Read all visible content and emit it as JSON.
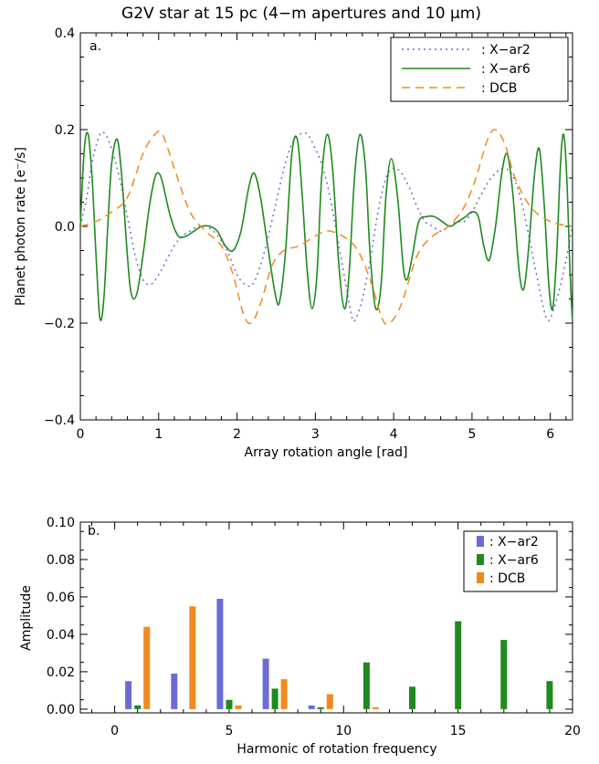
{
  "figure_title": "G2V star at 15 pc (4−m apertures and 10 μm)",
  "chart_data": [
    {
      "type": "line",
      "panel_label": "a.",
      "xlabel": "Array rotation angle [rad]",
      "ylabel": "Planet photon rate [e⁻/s]",
      "xlim": [
        0,
        6.2832
      ],
      "ylim": [
        -0.4,
        0.4
      ],
      "xticks": [
        "0",
        "1",
        "2",
        "3",
        "4",
        "5",
        "6"
      ],
      "yticks": [
        "−0.4",
        "−0.2",
        "0.0",
        "0.2",
        "0.4"
      ],
      "legend_position": "top-right",
      "series": [
        {
          "name": ": X−ar2",
          "color": "#6b6bd6",
          "style": "dotted",
          "points": [
            [
              0,
              0
            ],
            [
              0.08,
              0.06
            ],
            [
              0.16,
              0.14
            ],
            [
              0.25,
              0.19
            ],
            [
              0.32,
              0.19
            ],
            [
              0.4,
              0.16
            ],
            [
              0.5,
              0.1
            ],
            [
              0.6,
              0.02
            ],
            [
              0.7,
              -0.06
            ],
            [
              0.8,
              -0.11
            ],
            [
              0.9,
              -0.12
            ],
            [
              1.0,
              -0.1
            ],
            [
              1.1,
              -0.07
            ],
            [
              1.2,
              -0.04
            ],
            [
              1.3,
              -0.02
            ],
            [
              1.4,
              -0.01
            ],
            [
              1.5,
              0
            ],
            [
              1.6,
              0
            ],
            [
              1.7,
              -0.01
            ],
            [
              1.8,
              -0.03
            ],
            [
              1.9,
              -0.06
            ],
            [
              2.0,
              -0.1
            ],
            [
              2.1,
              -0.12
            ],
            [
              2.2,
              -0.12
            ],
            [
              2.3,
              -0.08
            ],
            [
              2.4,
              -0.02
            ],
            [
              2.5,
              0.05
            ],
            [
              2.6,
              0.12
            ],
            [
              2.7,
              0.17
            ],
            [
              2.8,
              0.19
            ],
            [
              2.9,
              0.19
            ],
            [
              3.0,
              0.16
            ],
            [
              3.1,
              0.12
            ],
            [
              3.2,
              0.05
            ],
            [
              3.3,
              -0.04
            ],
            [
              3.4,
              -0.13
            ],
            [
              3.47,
              -0.19
            ],
            [
              3.52,
              -0.19
            ],
            [
              3.6,
              -0.15
            ],
            [
              3.7,
              -0.07
            ],
            [
              3.8,
              0.03
            ],
            [
              3.9,
              0.1
            ],
            [
              4.0,
              0.12
            ],
            [
              4.1,
              0.11
            ],
            [
              4.2,
              0.08
            ],
            [
              4.3,
              0.04
            ],
            [
              4.4,
              0.01
            ],
            [
              4.5,
              0
            ],
            [
              4.6,
              -0.01
            ],
            [
              4.7,
              0
            ],
            [
              4.8,
              0.01
            ],
            [
              4.9,
              0.01
            ],
            [
              5.0,
              0.03
            ],
            [
              5.1,
              0.06
            ],
            [
              5.2,
              0.09
            ],
            [
              5.3,
              0.11
            ],
            [
              5.4,
              0.12
            ],
            [
              5.5,
              0.11
            ],
            [
              5.6,
              0.07
            ],
            [
              5.7,
              0.0
            ],
            [
              5.8,
              -0.08
            ],
            [
              5.9,
              -0.16
            ],
            [
              5.95,
              -0.19
            ],
            [
              6.0,
              -0.19
            ],
            [
              6.1,
              -0.14
            ],
            [
              6.2,
              -0.07
            ],
            [
              6.28,
              0.0
            ]
          ]
        },
        {
          "name": ": X−ar6",
          "color": "#1f8a1f",
          "style": "solid",
          "points": [
            [
              0,
              0
            ],
            [
              0.05,
              0.16
            ],
            [
              0.1,
              0.19
            ],
            [
              0.15,
              0.1
            ],
            [
              0.2,
              -0.06
            ],
            [
              0.25,
              -0.19
            ],
            [
              0.3,
              -0.15
            ],
            [
              0.35,
              0.0
            ],
            [
              0.4,
              0.13
            ],
            [
              0.47,
              0.18
            ],
            [
              0.53,
              0.1
            ],
            [
              0.6,
              -0.06
            ],
            [
              0.65,
              -0.14
            ],
            [
              0.72,
              -0.14
            ],
            [
              0.8,
              -0.06
            ],
            [
              0.88,
              0.04
            ],
            [
              0.95,
              0.1
            ],
            [
              1.0,
              0.11
            ],
            [
              1.05,
              0.09
            ],
            [
              1.15,
              0.02
            ],
            [
              1.25,
              -0.02
            ],
            [
              1.35,
              -0.02
            ],
            [
              1.45,
              -0.01
            ],
            [
              1.55,
              0.0
            ],
            [
              1.65,
              0.0
            ],
            [
              1.75,
              -0.01
            ],
            [
              1.85,
              -0.04
            ],
            [
              1.95,
              -0.05
            ],
            [
              2.05,
              -0.01
            ],
            [
              2.15,
              0.08
            ],
            [
              2.22,
              0.11
            ],
            [
              2.3,
              0.06
            ],
            [
              2.4,
              -0.05
            ],
            [
              2.5,
              -0.15
            ],
            [
              2.55,
              -0.15
            ],
            [
              2.62,
              -0.05
            ],
            [
              2.7,
              0.15
            ],
            [
              2.77,
              0.18
            ],
            [
              2.83,
              0.07
            ],
            [
              2.9,
              -0.1
            ],
            [
              2.96,
              -0.17
            ],
            [
              3.02,
              -0.1
            ],
            [
              3.08,
              0.1
            ],
            [
              3.15,
              0.19
            ],
            [
              3.22,
              0.12
            ],
            [
              3.3,
              -0.08
            ],
            [
              3.37,
              -0.17
            ],
            [
              3.43,
              -0.1
            ],
            [
              3.5,
              0.1
            ],
            [
              3.57,
              0.19
            ],
            [
              3.64,
              0.12
            ],
            [
              3.7,
              -0.06
            ],
            [
              3.77,
              -0.17
            ],
            [
              3.84,
              -0.12
            ],
            [
              3.9,
              0.06
            ],
            [
              3.97,
              0.14
            ],
            [
              4.05,
              0.06
            ],
            [
              4.12,
              -0.08
            ],
            [
              4.17,
              -0.11
            ],
            [
              4.24,
              -0.06
            ],
            [
              4.32,
              0.01
            ],
            [
              4.42,
              0.02
            ],
            [
              4.52,
              0.02
            ],
            [
              4.62,
              0.01
            ],
            [
              4.72,
              0.0
            ],
            [
              4.82,
              0.01
            ],
            [
              4.92,
              0.02
            ],
            [
              5.0,
              0.03
            ],
            [
              5.08,
              0.02
            ],
            [
              5.15,
              -0.04
            ],
            [
              5.22,
              -0.07
            ],
            [
              5.3,
              0.0
            ],
            [
              5.38,
              0.11
            ],
            [
              5.45,
              0.15
            ],
            [
              5.52,
              0.07
            ],
            [
              5.6,
              -0.09
            ],
            [
              5.66,
              -0.13
            ],
            [
              5.72,
              -0.05
            ],
            [
              5.8,
              0.11
            ],
            [
              5.86,
              0.16
            ],
            [
              5.92,
              0.05
            ],
            [
              5.98,
              -0.12
            ],
            [
              6.03,
              -0.17
            ],
            [
              6.08,
              -0.06
            ],
            [
              6.13,
              0.13
            ],
            [
              6.17,
              0.19
            ],
            [
              6.21,
              0.1
            ],
            [
              6.25,
              -0.09
            ],
            [
              6.28,
              -0.19
            ]
          ]
        },
        {
          "name": ": DCB",
          "color": "#f08a1e",
          "style": "dashed",
          "points": [
            [
              0,
              0.0
            ],
            [
              0.2,
              0.01
            ],
            [
              0.4,
              0.03
            ],
            [
              0.6,
              0.06
            ],
            [
              0.8,
              0.15
            ],
            [
              0.95,
              0.19
            ],
            [
              1.05,
              0.19
            ],
            [
              1.2,
              0.12
            ],
            [
              1.4,
              0.03
            ],
            [
              1.6,
              -0.01
            ],
            [
              1.8,
              -0.04
            ],
            [
              1.95,
              -0.1
            ],
            [
              2.08,
              -0.18
            ],
            [
              2.18,
              -0.2
            ],
            [
              2.3,
              -0.16
            ],
            [
              2.45,
              -0.08
            ],
            [
              2.6,
              -0.05
            ],
            [
              2.8,
              -0.04
            ],
            [
              3.0,
              -0.02
            ],
            [
              3.2,
              -0.01
            ],
            [
              3.5,
              -0.04
            ],
            [
              3.7,
              -0.11
            ],
            [
              3.85,
              -0.19
            ],
            [
              3.95,
              -0.2
            ],
            [
              4.1,
              -0.16
            ],
            [
              4.3,
              -0.06
            ],
            [
              4.5,
              -0.02
            ],
            [
              4.7,
              0.0
            ],
            [
              4.9,
              0.04
            ],
            [
              5.05,
              0.1
            ],
            [
              5.2,
              0.18
            ],
            [
              5.3,
              0.2
            ],
            [
              5.42,
              0.17
            ],
            [
              5.55,
              0.1
            ],
            [
              5.75,
              0.04
            ],
            [
              6.0,
              0.01
            ],
            [
              6.28,
              0.0
            ]
          ]
        }
      ]
    },
    {
      "type": "bar",
      "panel_label": "b.",
      "xlabel": "Harmonic of rotation frequency",
      "ylabel": "Amplitude",
      "xlim": [
        -1.5,
        20
      ],
      "ylim": [
        -0.002,
        0.1
      ],
      "xticks": [
        "0",
        "5",
        "10",
        "15",
        "20"
      ],
      "yticks": [
        "0.00",
        "0.02",
        "0.04",
        "0.06",
        "0.08",
        "0.10"
      ],
      "legend_position": "top-right",
      "series": [
        {
          "name": ": X−ar2",
          "color": "#6b6bd6",
          "bars": [
            [
              0.6,
              0.015
            ],
            [
              2.6,
              0.019
            ],
            [
              4.6,
              0.059
            ],
            [
              6.6,
              0.027
            ],
            [
              8.6,
              0.002
            ]
          ]
        },
        {
          "name": ": X−ar6",
          "color": "#1f8a1f",
          "bars": [
            [
              1.0,
              0.002
            ],
            [
              5.0,
              0.005
            ],
            [
              7.0,
              0.011
            ],
            [
              9.0,
              0.001
            ],
            [
              11.0,
              0.025
            ],
            [
              13.0,
              0.012
            ],
            [
              15.0,
              0.047
            ],
            [
              17.0,
              0.037
            ],
            [
              19.0,
              0.015
            ]
          ]
        },
        {
          "name": ": DCB",
          "color": "#f08a1e",
          "bars": [
            [
              1.4,
              0.044
            ],
            [
              3.4,
              0.055
            ],
            [
              5.4,
              0.002
            ],
            [
              7.4,
              0.016
            ],
            [
              9.4,
              0.008
            ],
            [
              11.4,
              0.001
            ]
          ]
        }
      ]
    }
  ]
}
